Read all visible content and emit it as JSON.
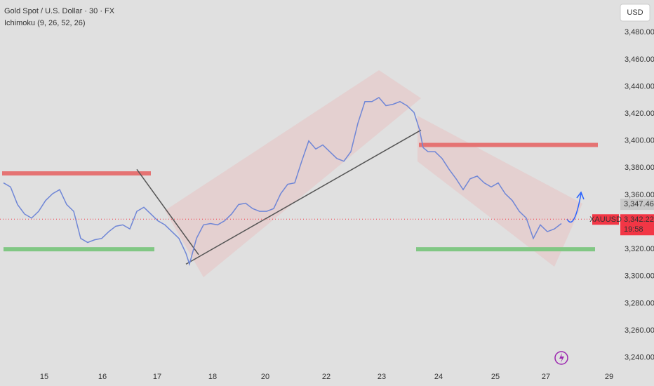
{
  "chart_data": {
    "type": "line",
    "title": "Gold Spot / U.S. Dollar · 30 · FX",
    "subtitle": "Ichimoku (9, 26, 52, 26)",
    "currency": "USD",
    "symbol": "XAUUSD",
    "countdown": "19:58",
    "xlim": [
      0,
      88
    ],
    "ylim": [
      3232,
      3504
    ],
    "xticks": [
      {
        "value": 6.3,
        "label": "15"
      },
      {
        "value": 14.6,
        "label": "16"
      },
      {
        "value": 22.4,
        "label": "17"
      },
      {
        "value": 30.3,
        "label": "18"
      },
      {
        "value": 37.8,
        "label": "20"
      },
      {
        "value": 46.5,
        "label": "22"
      },
      {
        "value": 54.4,
        "label": "23"
      },
      {
        "value": 62.5,
        "label": "24"
      },
      {
        "value": 70.6,
        "label": "25"
      },
      {
        "value": 77.8,
        "label": "27"
      },
      {
        "value": 86.8,
        "label": "29"
      }
    ],
    "yticks": [
      {
        "value": 3240,
        "label": "3,240.00"
      },
      {
        "value": 3260,
        "label": "3,260.00"
      },
      {
        "value": 3280,
        "label": "3,280.00"
      },
      {
        "value": 3300,
        "label": "3,300.00"
      },
      {
        "value": 3320,
        "label": "3,320.00"
      },
      {
        "value": 3340,
        "label": "3,340.00"
      },
      {
        "value": 3360,
        "label": "3,360.00"
      },
      {
        "value": 3380,
        "label": "3,380.00"
      },
      {
        "value": 3400,
        "label": "3,400.00"
      },
      {
        "value": 3420,
        "label": "3,420.00"
      },
      {
        "value": 3440,
        "label": "3,440.00"
      },
      {
        "value": 3460,
        "label": "3,460.00"
      },
      {
        "value": 3480,
        "label": "3,480.00"
      }
    ],
    "series": [
      {
        "name": "XAUUSD",
        "color": "#6f86d6",
        "x": [
          0.5,
          1.5,
          2.5,
          3.5,
          4.5,
          5.5,
          6.5,
          7.5,
          8.5,
          9.5,
          10.5,
          11.5,
          12.5,
          13.5,
          14.5,
          15.5,
          16.5,
          17.5,
          18.5,
          19.5,
          20.5,
          21.5,
          22.5,
          23.5,
          24.5,
          25.5,
          26.5,
          27,
          28,
          29,
          30,
          31,
          32,
          33,
          34,
          35,
          36,
          37,
          38,
          39,
          40,
          41,
          42,
          43,
          44,
          45,
          46,
          47,
          48,
          49,
          50,
          51,
          52,
          53,
          54,
          55,
          56,
          57,
          58,
          59,
          59.8,
          60.3,
          61,
          62,
          63,
          64,
          65,
          66,
          67,
          68,
          69,
          70,
          71,
          72,
          73,
          74,
          75,
          76,
          77,
          78,
          79,
          80
        ],
        "values": [
          3369,
          3366,
          3353,
          3346,
          3343,
          3348,
          3356,
          3361,
          3364,
          3353,
          3348,
          3328,
          3325,
          3327,
          3328,
          3333,
          3337,
          3338,
          3335,
          3348,
          3351,
          3346,
          3341,
          3338,
          3333,
          3328,
          3317,
          3309,
          3328,
          3338,
          3339,
          3338,
          3341,
          3346,
          3353,
          3354,
          3350,
          3348,
          3348,
          3350,
          3361,
          3368,
          3369,
          3385,
          3400,
          3394,
          3397,
          3392,
          3387,
          3385,
          3392,
          3413,
          3429,
          3429,
          3432,
          3426,
          3427,
          3429,
          3426,
          3421,
          3408,
          3395,
          3392,
          3392,
          3387,
          3379,
          3372,
          3364,
          3372,
          3374,
          3369,
          3366,
          3369,
          3361,
          3356,
          3348,
          3343,
          3328,
          3338,
          3333,
          3335,
          3339
        ]
      }
    ],
    "levels": [
      {
        "value": 3376,
        "x": [
          0.3,
          21.5
        ],
        "color": "#e57373"
      },
      {
        "value": 3397,
        "x": [
          59.7,
          85.2
        ],
        "color": "#e57373"
      },
      {
        "value": 3320,
        "x": [
          0.5,
          22
        ],
        "color": "#81c784"
      },
      {
        "value": 3320,
        "x": [
          59.3,
          84.8
        ],
        "color": "#81c784"
      }
    ],
    "trendlines": [
      {
        "x": [
          19.5,
          28.3
        ],
        "values": [
          3379,
          3316
        ]
      },
      {
        "x": [
          26.5,
          60
        ],
        "values": [
          3309,
          3408
        ]
      }
    ],
    "price_labels": [
      {
        "value": 3347.46,
        "label": "3,347.46",
        "color": "#c9c9c9"
      },
      {
        "value": 3342.22,
        "label": "3,342.22",
        "color": "#f23645"
      }
    ]
  }
}
